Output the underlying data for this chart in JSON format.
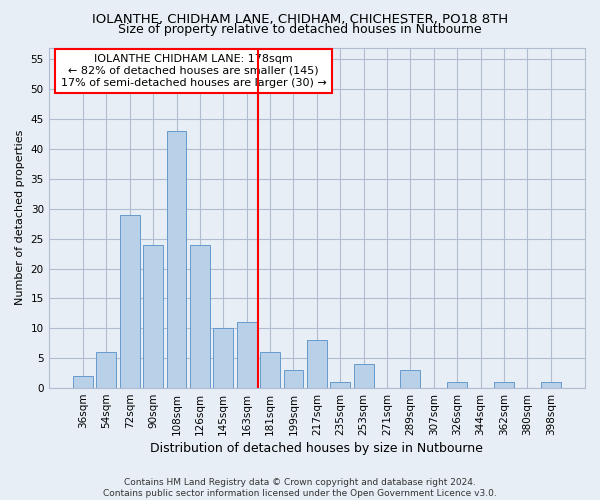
{
  "title1": "IOLANTHE, CHIDHAM LANE, CHIDHAM, CHICHESTER, PO18 8TH",
  "title2": "Size of property relative to detached houses in Nutbourne",
  "xlabel": "Distribution of detached houses by size in Nutbourne",
  "ylabel": "Number of detached properties",
  "categories": [
    "36sqm",
    "54sqm",
    "72sqm",
    "90sqm",
    "108sqm",
    "126sqm",
    "145sqm",
    "163sqm",
    "181sqm",
    "199sqm",
    "217sqm",
    "235sqm",
    "253sqm",
    "271sqm",
    "289sqm",
    "307sqm",
    "326sqm",
    "344sqm",
    "362sqm",
    "380sqm",
    "398sqm"
  ],
  "values": [
    2,
    6,
    29,
    24,
    43,
    24,
    10,
    11,
    6,
    3,
    8,
    1,
    4,
    0,
    3,
    0,
    1,
    0,
    1,
    0,
    1
  ],
  "bar_color": "#b8d0e8",
  "bar_edge_color": "#6699cc",
  "vline_x": 7.5,
  "vline_color": "red",
  "annotation_line1": "IOLANTHE CHIDHAM LANE: 178sqm",
  "annotation_line2": "← 82% of detached houses are smaller (145)",
  "annotation_line3": "17% of semi-detached houses are larger (30) →",
  "ylim": [
    0,
    57
  ],
  "yticks": [
    0,
    5,
    10,
    15,
    20,
    25,
    30,
    35,
    40,
    45,
    50,
    55
  ],
  "footer_line1": "Contains HM Land Registry data © Crown copyright and database right 2024.",
  "footer_line2": "Contains public sector information licensed under the Open Government Licence v3.0.",
  "bg_color": "#e8eef5",
  "plot_bg_color": "#e8eef5",
  "grid_color": "#b0bcd0",
  "title1_fontsize": 9.5,
  "title2_fontsize": 9,
  "xlabel_fontsize": 9,
  "ylabel_fontsize": 8,
  "tick_fontsize": 7.5,
  "footer_fontsize": 6.5,
  "annotation_fontsize": 8
}
